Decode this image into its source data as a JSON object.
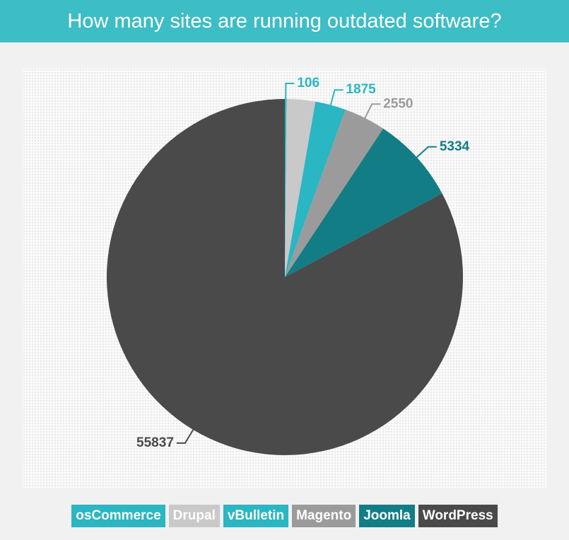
{
  "chart_data": {
    "type": "pie",
    "title": "How many sites are running outdated software?",
    "categories": [
      "osCommerce",
      "Drupal",
      "vBulletin",
      "Magento",
      "Joomla",
      "WordPress"
    ],
    "values": [
      106,
      1750,
      1875,
      2550,
      5334,
      55837
    ],
    "colors": [
      "#2ab6c2",
      "#c9c9c9",
      "#2ab6c2",
      "#9b9b9b",
      "#137d86",
      "#4a4a4a"
    ],
    "labeled": [
      true,
      false,
      true,
      true,
      true,
      true
    ]
  }
}
